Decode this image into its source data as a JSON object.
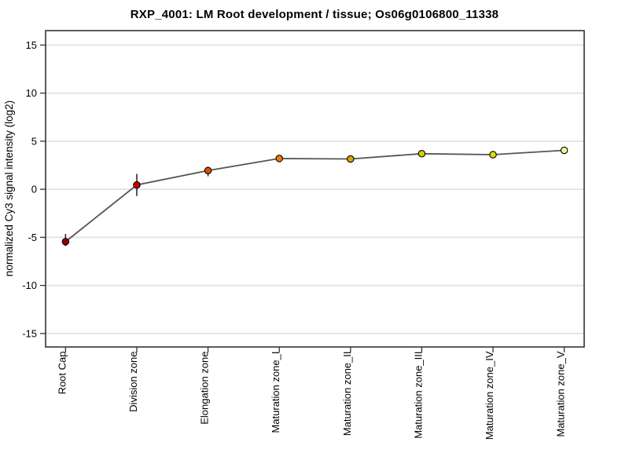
{
  "chart_data": {
    "type": "line",
    "title": "RXP_4001: LM Root development / tissue; Os06g0106800_11338",
    "xlabel": "",
    "ylabel": "normalized Cy3 signal intensity (log2)",
    "ylim": [
      -16.4,
      16.5
    ],
    "yticks": [
      15,
      10,
      5,
      0,
      -5,
      -10,
      -15
    ],
    "grid": true,
    "legend_position": "none",
    "categories": [
      "Root Cap",
      "Division zone",
      "Elongation zone",
      "Maturation zone_I",
      "Maturation zone_II",
      "Maturation zone_III",
      "Maturation zone_IV",
      "Maturation zone_V"
    ],
    "series": [
      {
        "name": "normalized Cy3 signal intensity",
        "values": [
          -5.45,
          0.45,
          1.95,
          3.2,
          3.15,
          3.7,
          3.6,
          4.05
        ],
        "error_high": [
          -4.65,
          1.6,
          2.3,
          3.5,
          3.3,
          3.9,
          3.75,
          4.15
        ],
        "error_low": [
          -5.9,
          -0.7,
          1.35,
          2.95,
          2.8,
          3.5,
          3.45,
          3.9
        ],
        "point_colors": [
          "#8f0000",
          "#cc0000",
          "#e04f00",
          "#ee7c00",
          "#d9a600",
          "#d2d200",
          "#dcdc00",
          "#f0f096"
        ]
      }
    ],
    "colors": {
      "line": "#555555",
      "error_bar": "#222222",
      "grid": "#e4e4e4",
      "frame": "#333333",
      "tick": "#333333",
      "point_outline": "#000000",
      "background": "#ffffff"
    }
  }
}
